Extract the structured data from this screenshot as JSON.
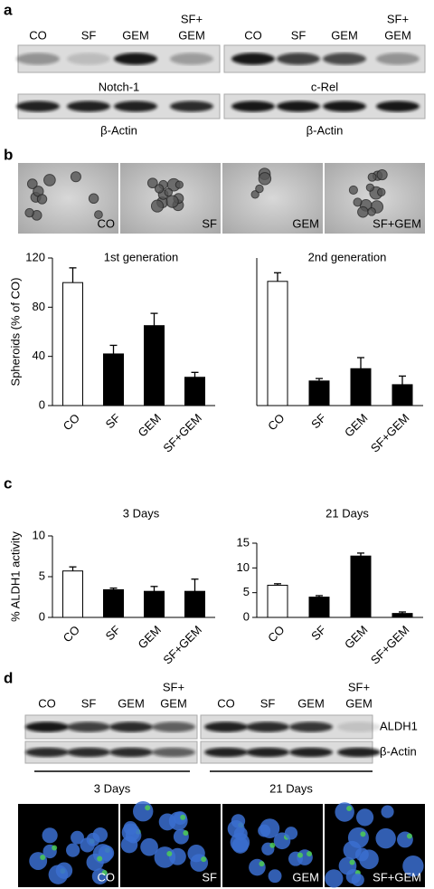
{
  "panel_labels": [
    "a",
    "b",
    "c",
    "d"
  ],
  "blot_a": [
    {
      "lanes": [
        "CO",
        "SF",
        "GEM",
        [
          "SF+",
          "GEM"
        ]
      ],
      "top_label": "Notch-1",
      "bottom_label": "β-Actin"
    },
    {
      "lanes": [
        "CO",
        "SF",
        "GEM",
        [
          "SF+",
          "GEM"
        ]
      ],
      "top_label": "c-Rel",
      "bottom_label": "β-Actin"
    }
  ],
  "images_b": [
    "CO",
    "SF",
    "GEM",
    "SF+GEM"
  ],
  "chart_data": [
    {
      "type": "bar",
      "title": "1st generation",
      "ylabel": "Spheroids (% of CO)",
      "categories": [
        "CO",
        "SF",
        "GEM",
        "SF+GEM"
      ],
      "values": [
        100,
        42,
        65,
        23
      ],
      "errors": [
        12,
        7,
        10,
        4
      ],
      "colors": [
        "#ffffff",
        "#000000",
        "#000000",
        "#000000"
      ],
      "ylim": [
        0,
        120
      ],
      "yticks": [
        0,
        40,
        80,
        120
      ]
    },
    {
      "type": "bar",
      "title": "2nd generation",
      "categories": [
        "CO",
        "SF",
        "GEM",
        "SF+GEM"
      ],
      "values": [
        101,
        20,
        30,
        17
      ],
      "errors": [
        7,
        2,
        9,
        7
      ],
      "colors": [
        "#ffffff",
        "#000000",
        "#000000",
        "#000000"
      ],
      "ylim": [
        0,
        120
      ]
    },
    {
      "type": "bar",
      "title": "3 Days",
      "ylabel": "% ALDH1 activity",
      "categories": [
        "CO",
        "SF",
        "GEM",
        "SF+GEM"
      ],
      "values": [
        5.7,
        3.4,
        3.2,
        3.2
      ],
      "errors": [
        0.5,
        0.2,
        0.6,
        1.5
      ],
      "colors": [
        "#ffffff",
        "#000000",
        "#000000",
        "#000000"
      ],
      "ylim": [
        0,
        10
      ],
      "yticks": [
        0,
        5,
        10
      ]
    },
    {
      "type": "bar",
      "title": "21 Days",
      "categories": [
        "CO",
        "SF",
        "GEM",
        "SF+GEM"
      ],
      "values": [
        6.5,
        4.1,
        12.4,
        0.8
      ],
      "errors": [
        0.3,
        0.3,
        0.6,
        0.3
      ],
      "colors": [
        "#ffffff",
        "#000000",
        "#000000",
        "#000000"
      ],
      "ylim": [
        0,
        15
      ],
      "yticks": [
        0,
        5,
        10,
        15
      ]
    }
  ],
  "blot_d": {
    "lanes": [
      "CO",
      "SF",
      "GEM",
      [
        "SF+",
        "GEM"
      ],
      "CO",
      "SF",
      "GEM",
      [
        "SF+",
        "GEM"
      ]
    ],
    "row_labels": [
      "ALDH1",
      "β-Actin"
    ],
    "groups": [
      "3 Days",
      "21 Days"
    ]
  },
  "images_d": [
    "CO",
    "SF",
    "GEM",
    "SF+GEM"
  ]
}
